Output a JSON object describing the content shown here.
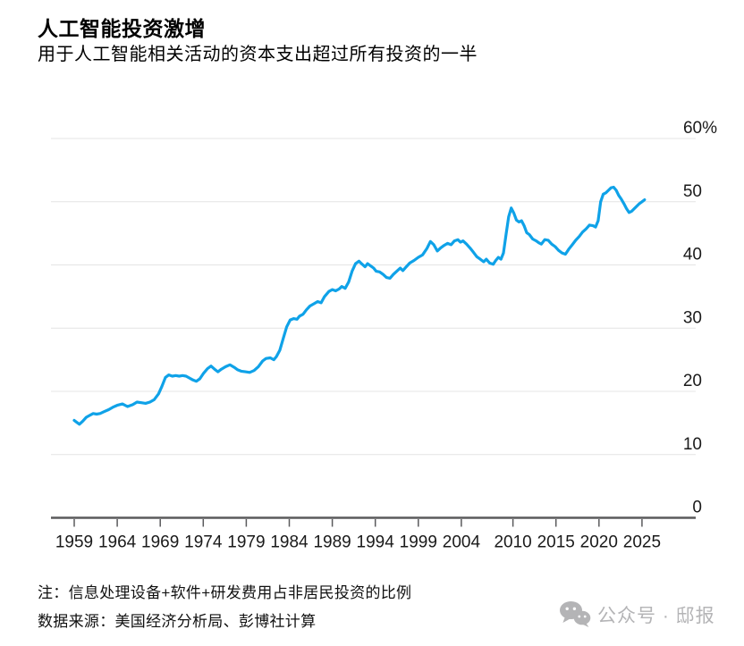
{
  "header": {
    "title": "人工智能投资激增",
    "subtitle": "用于人工智能相关活动的资本支出超过所有投资的一半"
  },
  "footer": {
    "note": "注：信息处理设备+软件+研发费用占非居民投资的比例",
    "source": "数据来源：美国经济分析局、彭博社计算"
  },
  "watermark": {
    "label": "公众号 · 邸报",
    "icon": "wechat-icon",
    "color": "#b4b4b6"
  },
  "chart_data": {
    "type": "line",
    "title": "人工智能投资激增",
    "subtitle": "用于人工智能相关活动的资本支出超过所有投资的一半",
    "ylabel": "",
    "xlabel": "",
    "unit": "%",
    "ylim": [
      0,
      60
    ],
    "xlim": [
      1959,
      2025.5
    ],
    "grid": "horizontal",
    "legend_position": "none",
    "y_ticks": [
      0,
      10,
      20,
      30,
      40,
      50,
      60
    ],
    "y_top_tick_label": "60%",
    "x_ticks": [
      1959,
      1964,
      1969,
      1974,
      1979,
      1984,
      1989,
      1994,
      1999,
      2004,
      2010,
      2015,
      2020,
      2025
    ],
    "line_color": "#0fa2e8",
    "grid_color": "#e4e4e4",
    "axis_color": "#5a5a5c",
    "tick_label_color": "#1a1a1a",
    "series": [
      {
        "name": "信息处理设备+软件+研发费用占非居民投资的比例 (%)",
        "points": [
          [
            1959.0,
            15.4
          ],
          [
            1959.3,
            15.1
          ],
          [
            1959.6,
            14.8
          ],
          [
            1960.0,
            15.3
          ],
          [
            1960.4,
            15.9
          ],
          [
            1960.8,
            16.2
          ],
          [
            1961.2,
            16.5
          ],
          [
            1961.6,
            16.4
          ],
          [
            1962.0,
            16.5
          ],
          [
            1962.5,
            16.8
          ],
          [
            1963.0,
            17.1
          ],
          [
            1963.5,
            17.5
          ],
          [
            1964.0,
            17.8
          ],
          [
            1964.6,
            18.0
          ],
          [
            1965.2,
            17.6
          ],
          [
            1965.8,
            17.9
          ],
          [
            1966.3,
            18.3
          ],
          [
            1966.8,
            18.2
          ],
          [
            1967.3,
            18.1
          ],
          [
            1967.8,
            18.3
          ],
          [
            1968.3,
            18.7
          ],
          [
            1968.8,
            19.6
          ],
          [
            1969.2,
            20.8
          ],
          [
            1969.6,
            22.2
          ],
          [
            1970.0,
            22.6
          ],
          [
            1970.4,
            22.4
          ],
          [
            1970.8,
            22.5
          ],
          [
            1971.2,
            22.4
          ],
          [
            1971.6,
            22.5
          ],
          [
            1972.0,
            22.4
          ],
          [
            1972.4,
            22.1
          ],
          [
            1972.8,
            21.8
          ],
          [
            1973.2,
            21.6
          ],
          [
            1973.6,
            22.0
          ],
          [
            1974.0,
            22.8
          ],
          [
            1974.5,
            23.6
          ],
          [
            1974.9,
            24.0
          ],
          [
            1975.4,
            23.4
          ],
          [
            1975.7,
            23.1
          ],
          [
            1976.1,
            23.5
          ],
          [
            1976.6,
            23.9
          ],
          [
            1977.1,
            24.2
          ],
          [
            1977.6,
            23.8
          ],
          [
            1978.0,
            23.4
          ],
          [
            1978.4,
            23.2
          ],
          [
            1978.9,
            23.1
          ],
          [
            1979.4,
            23.0
          ],
          [
            1979.9,
            23.3
          ],
          [
            1980.4,
            23.9
          ],
          [
            1980.9,
            24.8
          ],
          [
            1981.3,
            25.2
          ],
          [
            1981.8,
            25.3
          ],
          [
            1982.2,
            25.0
          ],
          [
            1982.5,
            25.5
          ],
          [
            1982.9,
            26.5
          ],
          [
            1983.3,
            28.4
          ],
          [
            1983.7,
            30.2
          ],
          [
            1984.1,
            31.3
          ],
          [
            1984.5,
            31.5
          ],
          [
            1984.9,
            31.4
          ],
          [
            1985.2,
            31.9
          ],
          [
            1985.6,
            32.2
          ],
          [
            1986.0,
            32.9
          ],
          [
            1986.4,
            33.5
          ],
          [
            1986.9,
            33.9
          ],
          [
            1987.3,
            34.2
          ],
          [
            1987.7,
            34.0
          ],
          [
            1988.1,
            35.0
          ],
          [
            1988.6,
            35.8
          ],
          [
            1989.0,
            36.1
          ],
          [
            1989.4,
            35.9
          ],
          [
            1989.8,
            36.2
          ],
          [
            1990.1,
            36.6
          ],
          [
            1990.5,
            36.3
          ],
          [
            1990.9,
            37.3
          ],
          [
            1991.3,
            39.0
          ],
          [
            1991.7,
            40.2
          ],
          [
            1992.1,
            40.6
          ],
          [
            1992.4,
            40.2
          ],
          [
            1992.8,
            39.7
          ],
          [
            1993.1,
            40.2
          ],
          [
            1993.4,
            39.9
          ],
          [
            1993.8,
            39.5
          ],
          [
            1994.1,
            39.0
          ],
          [
            1994.5,
            38.9
          ],
          [
            1994.9,
            38.5
          ],
          [
            1995.3,
            38.0
          ],
          [
            1995.7,
            37.9
          ],
          [
            1996.1,
            38.5
          ],
          [
            1996.5,
            39.0
          ],
          [
            1996.9,
            39.5
          ],
          [
            1997.2,
            39.1
          ],
          [
            1997.6,
            39.7
          ],
          [
            1998.0,
            40.3
          ],
          [
            1998.5,
            40.7
          ],
          [
            1999.0,
            41.2
          ],
          [
            1999.5,
            41.6
          ],
          [
            2000.0,
            42.6
          ],
          [
            2000.4,
            43.7
          ],
          [
            2000.8,
            43.2
          ],
          [
            2001.2,
            42.2
          ],
          [
            2001.6,
            42.7
          ],
          [
            2002.0,
            43.1
          ],
          [
            2002.4,
            43.4
          ],
          [
            2002.8,
            43.2
          ],
          [
            2003.2,
            43.8
          ],
          [
            2003.6,
            44.0
          ],
          [
            2003.9,
            43.6
          ],
          [
            2004.2,
            43.8
          ],
          [
            2004.6,
            43.3
          ],
          [
            2005.0,
            42.7
          ],
          [
            2005.4,
            42.0
          ],
          [
            2005.8,
            41.3
          ],
          [
            2006.2,
            40.9
          ],
          [
            2006.6,
            40.5
          ],
          [
            2006.9,
            40.9
          ],
          [
            2007.3,
            40.3
          ],
          [
            2007.7,
            40.1
          ],
          [
            2008.0,
            40.7
          ],
          [
            2008.3,
            41.2
          ],
          [
            2008.6,
            40.9
          ],
          [
            2008.9,
            41.9
          ],
          [
            2009.2,
            44.8
          ],
          [
            2009.5,
            47.6
          ],
          [
            2009.8,
            49.0
          ],
          [
            2010.1,
            48.2
          ],
          [
            2010.4,
            47.1
          ],
          [
            2010.7,
            46.8
          ],
          [
            2011.0,
            47.0
          ],
          [
            2011.3,
            46.2
          ],
          [
            2011.6,
            45.1
          ],
          [
            2011.9,
            44.8
          ],
          [
            2012.3,
            44.1
          ],
          [
            2012.7,
            43.8
          ],
          [
            2013.0,
            43.5
          ],
          [
            2013.3,
            43.3
          ],
          [
            2013.7,
            44.0
          ],
          [
            2014.1,
            43.9
          ],
          [
            2014.5,
            43.3
          ],
          [
            2014.9,
            42.9
          ],
          [
            2015.3,
            42.3
          ],
          [
            2015.7,
            41.9
          ],
          [
            2016.1,
            41.7
          ],
          [
            2016.5,
            42.5
          ],
          [
            2016.9,
            43.2
          ],
          [
            2017.3,
            43.9
          ],
          [
            2017.7,
            44.5
          ],
          [
            2018.1,
            45.2
          ],
          [
            2018.5,
            45.7
          ],
          [
            2018.9,
            46.3
          ],
          [
            2019.3,
            46.2
          ],
          [
            2019.6,
            46.0
          ],
          [
            2019.9,
            47.0
          ],
          [
            2020.2,
            50.0
          ],
          [
            2020.5,
            51.2
          ],
          [
            2020.8,
            51.4
          ],
          [
            2021.1,
            51.8
          ],
          [
            2021.4,
            52.2
          ],
          [
            2021.7,
            52.3
          ],
          [
            2022.0,
            51.8
          ],
          [
            2022.3,
            51.0
          ],
          [
            2022.6,
            50.4
          ],
          [
            2022.9,
            49.7
          ],
          [
            2023.2,
            48.9
          ],
          [
            2023.5,
            48.3
          ],
          [
            2023.8,
            48.5
          ],
          [
            2024.1,
            48.9
          ],
          [
            2024.4,
            49.3
          ],
          [
            2024.7,
            49.7
          ],
          [
            2025.0,
            50.0
          ],
          [
            2025.3,
            50.3
          ]
        ]
      }
    ]
  }
}
